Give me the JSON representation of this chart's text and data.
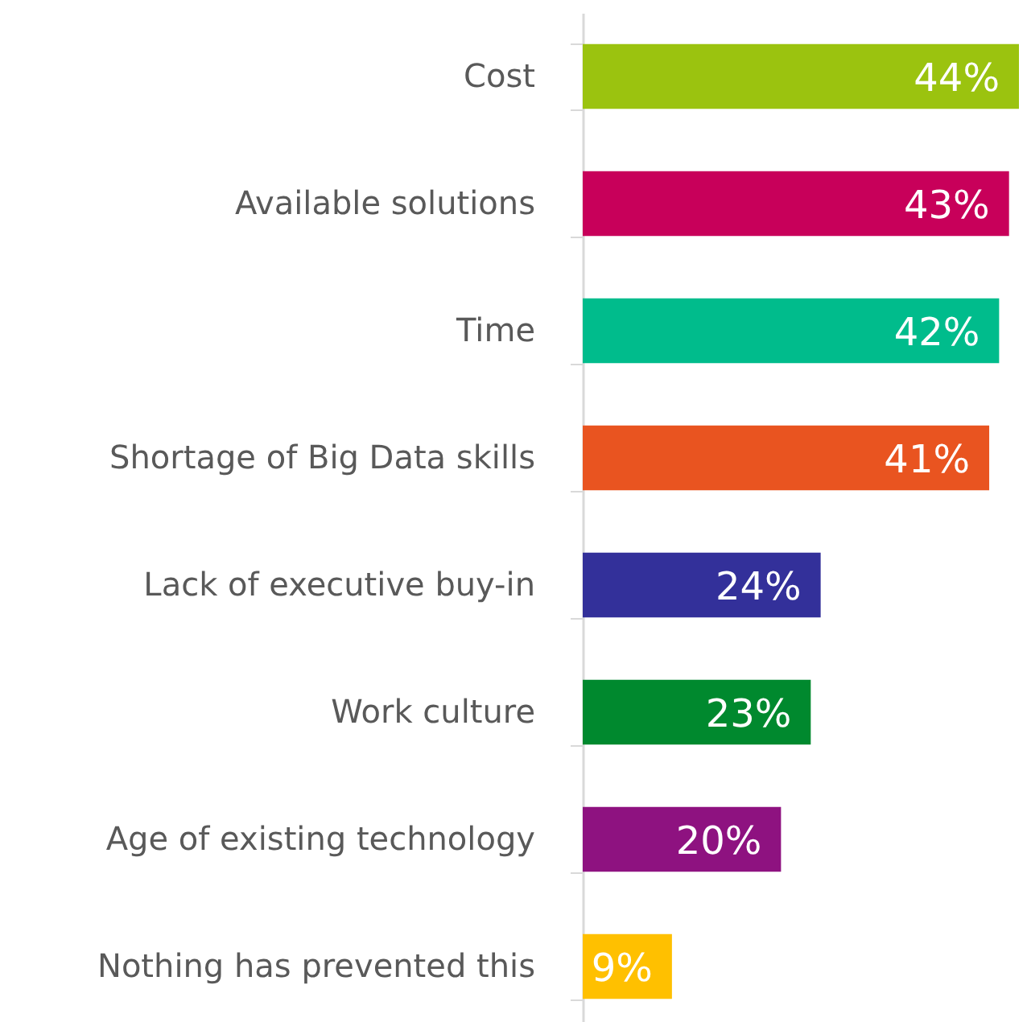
{
  "chart_data": {
    "type": "bar",
    "orientation": "horizontal",
    "categories": [
      "Cost",
      "Available solutions",
      "Time",
      "Shortage of Big Data skills",
      "Lack of executive buy-in",
      "Work culture",
      "Age of existing technology",
      "Nothing has prevented this"
    ],
    "values": [
      44,
      43,
      42,
      41,
      24,
      23,
      20,
      9
    ],
    "colors": [
      "#9bc30f",
      "#c8005a",
      "#00bc8c",
      "#e95420",
      "#33309a",
      "#00892e",
      "#8e1280",
      "#ffc000"
    ],
    "value_labels": [
      "44%",
      "43%",
      "42%",
      "41%",
      "24%",
      "23%",
      "20%",
      "9%"
    ]
  }
}
